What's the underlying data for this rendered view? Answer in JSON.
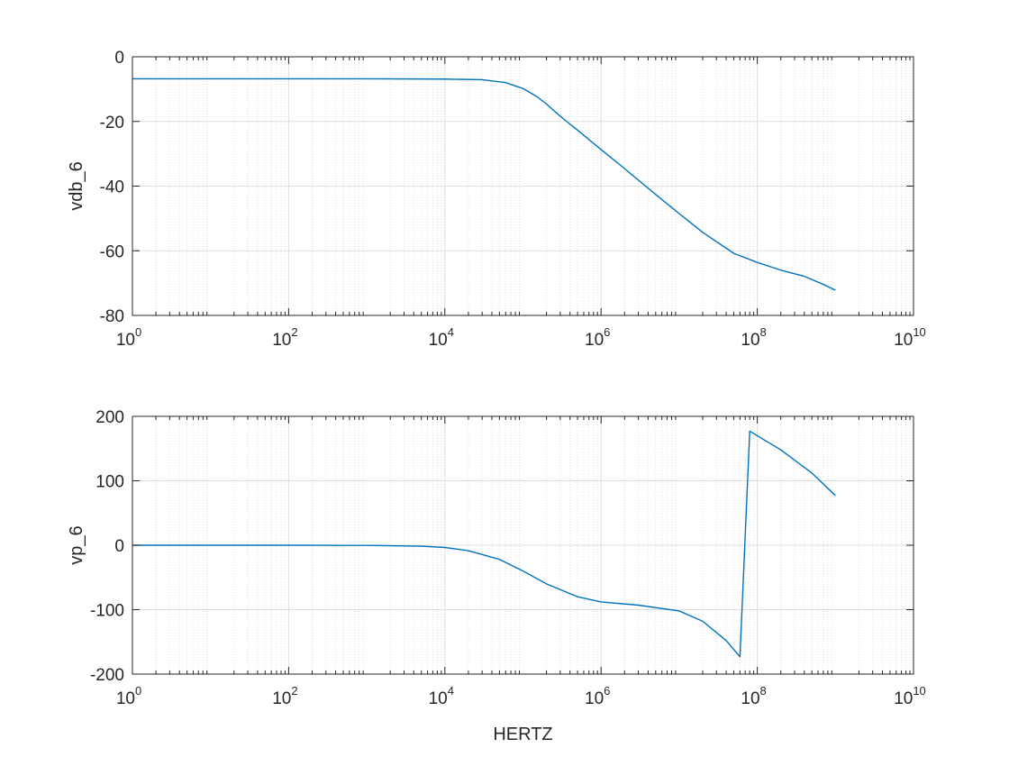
{
  "figure": {
    "background": "#ffffff",
    "line_color": "#0072bd",
    "axis_color": "#262626",
    "grid_color": "#dfdfdf"
  },
  "chart_data": [
    {
      "type": "line",
      "title": "",
      "xlabel": "",
      "ylabel": "vdb_6",
      "xscale": "log",
      "xlim": [
        1,
        10000000000
      ],
      "ylim": [
        -80,
        0
      ],
      "xticks": [
        1,
        100,
        10000,
        1000000,
        100000000,
        10000000000
      ],
      "xtick_labels": [
        {
          "base": "10",
          "exp": "0"
        },
        {
          "base": "10",
          "exp": "2"
        },
        {
          "base": "10",
          "exp": "4"
        },
        {
          "base": "10",
          "exp": "6"
        },
        {
          "base": "10",
          "exp": "8"
        },
        {
          "base": "10",
          "exp": "10"
        }
      ],
      "yticks": [
        -80,
        -60,
        -40,
        -20,
        0
      ],
      "ytick_labels": [
        "-80",
        "-60",
        "-40",
        "-20",
        "0"
      ],
      "grid": true,
      "minor_grid": true,
      "series": [
        {
          "x": [
            1,
            10,
            100,
            1000,
            10000,
            30000,
            60000,
            100000,
            150000,
            200000,
            300000,
            500000,
            1000000,
            2000000,
            5000000,
            10000000,
            20000000,
            50000000,
            100000000,
            200000000,
            400000000,
            700000000,
            1000000000
          ],
          "y": [
            -6.8,
            -6.8,
            -6.8,
            -6.8,
            -6.9,
            -7.1,
            -8.0,
            -9.8,
            -12.3,
            -14.6,
            -18.4,
            -22.7,
            -28.7,
            -34.6,
            -42.6,
            -48.5,
            -54.3,
            -60.8,
            -63.6,
            -66.0,
            -67.9,
            -70.4,
            -72.2
          ]
        }
      ]
    },
    {
      "type": "line",
      "title": "",
      "xlabel": "HERTZ",
      "ylabel": "vp_6",
      "xscale": "log",
      "xlim": [
        1,
        10000000000
      ],
      "ylim": [
        -200,
        200
      ],
      "xticks": [
        1,
        100,
        10000,
        1000000,
        100000000,
        10000000000
      ],
      "xtick_labels": [
        {
          "base": "10",
          "exp": "0"
        },
        {
          "base": "10",
          "exp": "2"
        },
        {
          "base": "10",
          "exp": "4"
        },
        {
          "base": "10",
          "exp": "6"
        },
        {
          "base": "10",
          "exp": "8"
        },
        {
          "base": "10",
          "exp": "10"
        }
      ],
      "yticks": [
        -200,
        -100,
        0,
        100,
        200
      ],
      "ytick_labels": [
        "-200",
        "-100",
        "0",
        "100",
        "200"
      ],
      "grid": true,
      "minor_grid": true,
      "series": [
        {
          "x": [
            1,
            10,
            100,
            1000,
            5000,
            10000,
            20000,
            50000,
            100000,
            200000,
            500000,
            1000000,
            3000000,
            10000000,
            20000000,
            40000000,
            60000000,
            80000000,
            200000000,
            500000000,
            1000000000
          ],
          "y": [
            0,
            0,
            0,
            -0.3,
            -1.5,
            -3.5,
            -8.5,
            -22,
            -40,
            -60,
            -80,
            -88,
            -93,
            -102,
            -118,
            -148,
            -173,
            177,
            148,
            112,
            77
          ]
        }
      ]
    }
  ]
}
